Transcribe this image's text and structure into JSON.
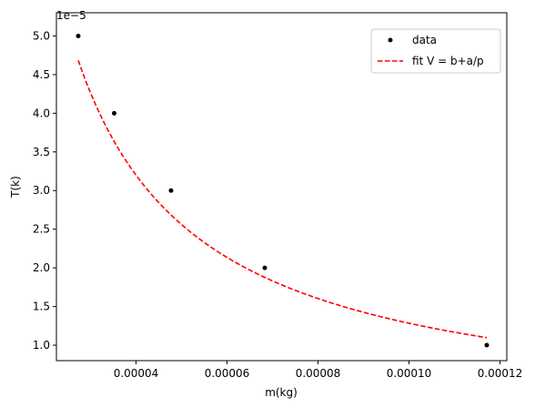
{
  "chart_data": {
    "type": "scatter",
    "xlabel": "m(kg)",
    "ylabel": "T(k)",
    "y_offset_text": "1e−5",
    "xlim": [
      2.25e-05,
      0.0001215
    ],
    "ylim": [
      0.8,
      5.3
    ],
    "x_ticks": [
      4e-05,
      6e-05,
      8e-05,
      0.0001,
      0.00012
    ],
    "x_tick_labels": [
      "0.00004",
      "0.00006",
      "0.00008",
      "0.00010",
      "0.00012"
    ],
    "y_ticks": [
      1.0,
      1.5,
      2.0,
      2.5,
      3.0,
      3.5,
      4.0,
      4.5,
      5.0
    ],
    "y_tick_labels": [
      "1.0",
      "1.5",
      "2.0",
      "2.5",
      "3.0",
      "3.5",
      "4.0",
      "4.5",
      "5.0"
    ],
    "grid": false,
    "legend_position": "top-right",
    "series": [
      {
        "name": "data",
        "kind": "points",
        "color": "#000000",
        "x": [
          2.73e-05,
          3.52e-05,
          4.77e-05,
          6.83e-05,
          0.0001171
        ],
        "y": [
          5.0,
          4.0,
          3.0,
          2.0,
          1.0
        ]
      },
      {
        "name": "fit V = b+a/p",
        "kind": "dashed-line",
        "color": "#ff0000",
        "b": 0.007,
        "a": 0.0001277,
        "x_range": [
          2.73e-05,
          0.0001171
        ]
      }
    ]
  }
}
